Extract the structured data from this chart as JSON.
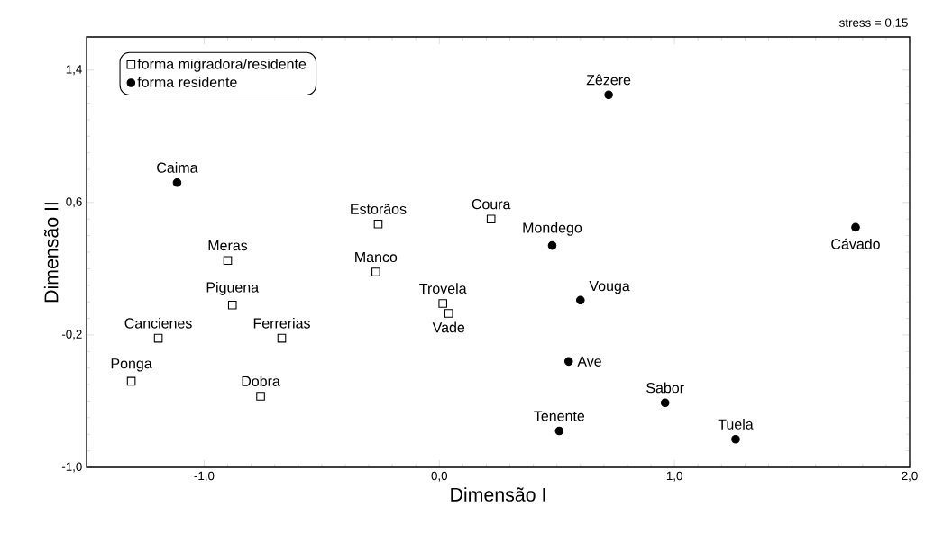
{
  "chart_data": {
    "type": "scatter",
    "xlabel": "Dimensão I",
    "ylabel": "Dimensão II",
    "xlim": [
      -1.5,
      2.0
    ],
    "ylim": [
      -1.0,
      1.6
    ],
    "xticks": [
      {
        "value": -1.0,
        "label": "-1,0"
      },
      {
        "value": 0.0,
        "label": "0,0"
      },
      {
        "value": 1.0,
        "label": "1,0"
      },
      {
        "value": 2.0,
        "label": "2,0"
      }
    ],
    "yticks": [
      {
        "value": -1.0,
        "label": "-1,0"
      },
      {
        "value": -0.2,
        "label": "-0,2"
      },
      {
        "value": 0.6,
        "label": "0,6"
      },
      {
        "value": 1.4,
        "label": "1,4"
      }
    ],
    "grid": false,
    "legend": "top left",
    "series": [
      {
        "name": "forma migradora/residente",
        "color": "#000000",
        "marker": "square",
        "x": [
          -0.26,
          -0.9,
          -0.27,
          -0.88,
          -1.195,
          -0.67,
          -1.31,
          -0.76,
          0.015,
          0.04,
          0.22
        ],
        "values": [
          0.47,
          0.25,
          0.18,
          -0.02,
          -0.22,
          -0.22,
          -0.48,
          -0.57,
          -0.01,
          -0.07,
          0.5
        ]
      },
      {
        "name": "forma residente",
        "color": "#000000",
        "marker": "circle",
        "x": [
          -1.115,
          0.72,
          0.48,
          1.77,
          0.6,
          0.55,
          0.96,
          0.51,
          1.26
        ],
        "values": [
          0.72,
          1.25,
          0.34,
          0.45,
          0.01,
          -0.36,
          -0.61,
          -0.78,
          -0.83
        ]
      }
    ],
    "annotations": [
      "stress = 0,15",
      {
        "text": "Estorãos",
        "x": -0.26,
        "y": 0.47
      },
      {
        "text": "Meras",
        "x": -0.9,
        "y": 0.25
      },
      {
        "text": "Manco",
        "x": -0.27,
        "y": 0.18
      },
      {
        "text": "Piguena",
        "x": -0.88,
        "y": -0.02
      },
      {
        "text": "Cancienes",
        "x": -1.195,
        "y": -0.22
      },
      {
        "text": "Ferrerias",
        "x": -0.67,
        "y": -0.22
      },
      {
        "text": "Ponga",
        "x": -1.31,
        "y": -0.48
      },
      {
        "text": "Dobra",
        "x": -0.76,
        "y": -0.57
      },
      {
        "text": "Trovela",
        "x": 0.015,
        "y": -0.01
      },
      {
        "text": "Vade",
        "x": 0.04,
        "y": -0.07
      },
      {
        "text": "Coura",
        "x": 0.22,
        "y": 0.5
      },
      {
        "text": "Caima",
        "x": -1.115,
        "y": 0.72
      },
      {
        "text": "Zêzere",
        "x": 0.72,
        "y": 1.25
      },
      {
        "text": "Mondego",
        "x": 0.48,
        "y": 0.34
      },
      {
        "text": "Cávado",
        "x": 1.77,
        "y": 0.45
      },
      {
        "text": "Vouga",
        "x": 0.6,
        "y": 0.01
      },
      {
        "text": "Ave",
        "x": 0.55,
        "y": -0.36
      },
      {
        "text": "Sabor",
        "x": 0.96,
        "y": -0.61
      },
      {
        "text": "Tenente",
        "x": 0.51,
        "y": -0.78
      },
      {
        "text": "Tuela",
        "x": 1.26,
        "y": -0.83
      }
    ]
  }
}
